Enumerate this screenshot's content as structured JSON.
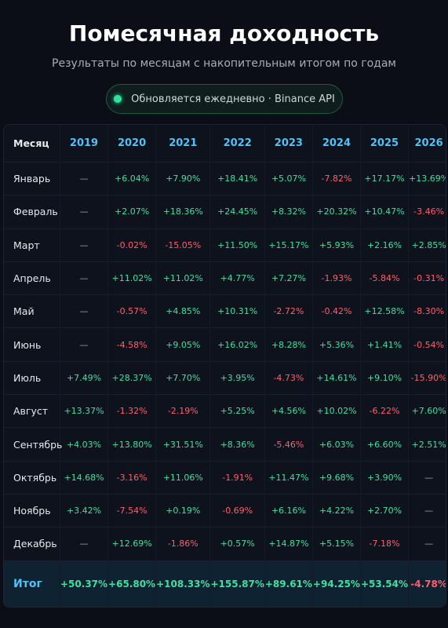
{
  "header": {
    "title": "Помесячная доходность",
    "subtitle": "Результаты по месяцам с накопительным итогом по годам",
    "badge": "Обновляется ежедневно · Binance API"
  },
  "table": {
    "columns": [
      "Месяц",
      "2019",
      "2020",
      "2021",
      "2022",
      "2023",
      "2024",
      "2025",
      "2026"
    ],
    "rows": [
      [
        "Январь",
        "—",
        "+6.04%",
        "+7.90%",
        "+18.41%",
        "+5.07%",
        "-7.82%",
        "+17.17%",
        "+13.69%"
      ],
      [
        "Февраль",
        "—",
        "+2.07%",
        "+18.36%",
        "+24.45%",
        "+8.32%",
        "+20.32%",
        "+10.47%",
        "-3.46%"
      ],
      [
        "Март",
        "—",
        "-0.02%",
        "-15.05%",
        "+11.50%",
        "+15.17%",
        "+5.93%",
        "+2.16%",
        "+2.85%"
      ],
      [
        "Апрель",
        "—",
        "+11.02%",
        "+11.02%",
        "+4.77%",
        "+7.27%",
        "-1.93%",
        "-5.84%",
        "-0.31%"
      ],
      [
        "Май",
        "—",
        "-0.57%",
        "+4.85%",
        "+10.31%",
        "-2.72%",
        "-0.42%",
        "+12.58%",
        "-8.30%"
      ],
      [
        "Июнь",
        "—",
        "-4.58%",
        "+9.05%",
        "+16.02%",
        "+8.28%",
        "+5.36%",
        "+1.41%",
        "-0.54%"
      ],
      [
        "Июль",
        "+7.49%",
        "+28.37%",
        "+7.70%",
        "+3.95%",
        "-4.73%",
        "+14.61%",
        "+9.10%",
        "-15.90%"
      ],
      [
        "Август",
        "+13.37%",
        "-1.32%",
        "-2.19%",
        "+5.25%",
        "+4.56%",
        "+10.02%",
        "-6.22%",
        "+7.60%"
      ],
      [
        "Сентябрь",
        "+4.03%",
        "+13.80%",
        "+31.51%",
        "+8.36%",
        "-5.46%",
        "+6.03%",
        "+6.60%",
        "+2.51%"
      ],
      [
        "Октябрь",
        "+14.68%",
        "-3.16%",
        "+11.06%",
        "-1.91%",
        "+11.47%",
        "+9.68%",
        "+3.90%",
        "—"
      ],
      [
        "Ноябрь",
        "+3.42%",
        "-7.54%",
        "+0.19%",
        "-0.69%",
        "+6.16%",
        "+4.22%",
        "+2.70%",
        "—"
      ],
      [
        "Декабрь",
        "—",
        "+12.69%",
        "-1.86%",
        "+0.57%",
        "+14.87%",
        "+5.15%",
        "-7.18%",
        "—"
      ]
    ],
    "total": [
      "Итог",
      "+50.37%",
      "+65.80%",
      "+108.33%",
      "+155.87%",
      "+89.61%",
      "+94.25%",
      "+53.54%",
      "-4.78%"
    ]
  }
}
